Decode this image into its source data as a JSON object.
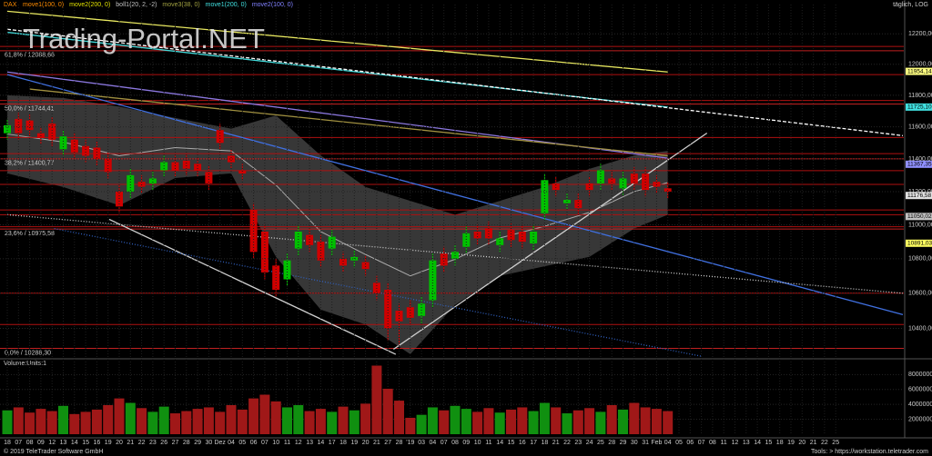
{
  "chart_data": {
    "type": "candlestick",
    "instrument": "DAX",
    "indicators": [
      "move1(100, 0)",
      "move2(200, 0)",
      "boll1(20, 2, -2)",
      "move3(38, 0)",
      "move1(200, 0)",
      "move2(100, 0)"
    ],
    "indicator_colors": [
      "#ff8c00",
      "#e0e000",
      "#c0c0c0",
      "#a0a040",
      "#40e0e0",
      "#8080ff"
    ],
    "period": "täglich, LOG",
    "watermark": "Trading-Portal.NET",
    "footer_left": "© 2019 TeleTrader Software GmbH",
    "footer_right": "Tools: > https://workstation.teletrader.com",
    "volume_title": "Volume:Units:1",
    "categories": [
      "18",
      "07",
      "08",
      "09",
      "12",
      "13",
      "14",
      "15",
      "16",
      "19",
      "20",
      "21",
      "22",
      "23",
      "26",
      "27",
      "28",
      "29",
      "30",
      "Dez",
      "04",
      "05",
      "06",
      "07",
      "10",
      "11",
      "12",
      "13",
      "14",
      "17",
      "18",
      "19",
      "20",
      "21",
      "27",
      "28",
      "'19",
      "03",
      "04",
      "07",
      "08",
      "09",
      "10",
      "11",
      "14",
      "15",
      "16",
      "17",
      "18",
      "21",
      "22",
      "23",
      "24",
      "25",
      "28",
      "29",
      "30",
      "31",
      "Feb",
      "04",
      "05",
      "06",
      "07",
      "08",
      "11",
      "12",
      "13",
      "14",
      "15",
      "18",
      "19",
      "20",
      "21",
      "22",
      "25"
    ],
    "open": [
      11560,
      11650,
      11640,
      11560,
      11620,
      11460,
      11520,
      11480,
      11470,
      11400,
      11200,
      11200,
      11260,
      11250,
      11330,
      11380,
      11390,
      11370,
      11320,
      11580,
      11420,
      11330,
      11090,
      10960,
      10760,
      10680,
      10860,
      10940,
      10900,
      10860,
      10800,
      10790,
      10780,
      10660,
      10620,
      10500,
      10520,
      10470,
      10560,
      10830,
      10800,
      10870,
      10960,
      10980,
      10880,
      10970,
      10960,
      10890,
      11070,
      11250,
      11130,
      11150,
      11250,
      11250,
      11280,
      11220,
      11310,
      11310,
      11260,
      11220,
      null,
      null,
      null,
      null,
      null,
      null,
      null,
      null,
      null,
      null,
      null,
      null,
      null,
      null,
      null
    ],
    "close": [
      11610,
      11560,
      11580,
      11530,
      11520,
      11540,
      11440,
      11420,
      11400,
      11320,
      11110,
      11300,
      11230,
      11280,
      11380,
      11330,
      11340,
      11330,
      11250,
      11500,
      11380,
      11310,
      10840,
      10720,
      10620,
      10790,
      10960,
      10880,
      10790,
      10930,
      10760,
      10810,
      10740,
      10600,
      10400,
      10440,
      10460,
      10540,
      10790,
      10760,
      10840,
      10950,
      10920,
      10920,
      10920,
      10910,
      10900,
      10960,
      11270,
      11210,
      11150,
      11100,
      11210,
      11330,
      11250,
      11280,
      11250,
      11210,
      11230,
      11200,
      null,
      null,
      null,
      null,
      null,
      null,
      null,
      null,
      null,
      null,
      null,
      null,
      null,
      null,
      null
    ],
    "high": [
      11650,
      11690,
      11680,
      11600,
      11660,
      11580,
      11560,
      11520,
      11510,
      11440,
      11240,
      11340,
      11300,
      11320,
      11420,
      11420,
      11430,
      11410,
      11360,
      11620,
      11460,
      11370,
      11130,
      11000,
      10800,
      10830,
      11000,
      10980,
      10940,
      10970,
      10840,
      10850,
      10820,
      10700,
      10660,
      10540,
      10560,
      10580,
      10830,
      10870,
      10880,
      10990,
      11000,
      11020,
      10960,
      11010,
      11000,
      11000,
      11310,
      11290,
      11190,
      11190,
      11290,
      11370,
      11320,
      11320,
      11350,
      11350,
      11300,
      11260,
      null,
      null,
      null,
      null,
      null,
      null,
      null,
      null,
      null,
      null,
      null,
      null,
      null,
      null,
      null
    ],
    "low": [
      11520,
      11520,
      11540,
      11490,
      11480,
      11420,
      11400,
      11380,
      11360,
      11280,
      11070,
      11160,
      11190,
      11210,
      11290,
      11290,
      11300,
      11290,
      11210,
      11460,
      11340,
      11270,
      10800,
      10680,
      10580,
      10640,
      10820,
      10840,
      10750,
      10820,
      10720,
      10750,
      10700,
      10560,
      10330,
      10310,
      10420,
      10430,
      10520,
      10720,
      10760,
      10830,
      10880,
      10880,
      10840,
      10870,
      10860,
      10850,
      11030,
      11170,
      11090,
      11060,
      11170,
      11210,
      11210,
      11180,
      11210,
      11170,
      11190,
      11160,
      null,
      null,
      null,
      null,
      null,
      null,
      null,
      null,
      null,
      null,
      null,
      null,
      null,
      null,
      null
    ],
    "volume": [
      3200000,
      3600000,
      2900000,
      3400000,
      3100000,
      3800000,
      2700000,
      3000000,
      3300000,
      3900000,
      4800000,
      4200000,
      3500000,
      3000000,
      3700000,
      2800000,
      3100000,
      3400000,
      3600000,
      3000000,
      3900000,
      3300000,
      4800000,
      5300000,
      4400000,
      3600000,
      3900000,
      3100000,
      3400000,
      3000000,
      3700000,
      3200000,
      4100000,
      9200000,
      6100000,
      4500000,
      2200000,
      2600000,
      3600000,
      3200000,
      3800000,
      3400000,
      3000000,
      3500000,
      2900000,
      3300000,
      3600000,
      3100000,
      4200000,
      3600000,
      2800000,
      3200000,
      3500000,
      3000000,
      3900000,
      3300000,
      4200000,
      3600000,
      3400000,
      3100000,
      null,
      null,
      null,
      null,
      null,
      null,
      null,
      null,
      null,
      null,
      null,
      null,
      null,
      null,
      null
    ],
    "up_color": "#00c000",
    "down_color": "#d00000",
    "log_scale": true,
    "grid": true,
    "ylim": [
      10240,
      12395
    ],
    "yticks": [
      {
        "value": 10400,
        "label": "10400,00"
      },
      {
        "value": 10600,
        "label": "10600,00"
      },
      {
        "value": 10800,
        "label": "10800,00"
      },
      {
        "value": 11000,
        "label": "11000,00"
      },
      {
        "value": 11200,
        "label": "11200,00"
      },
      {
        "value": 11400,
        "label": "11400,00"
      },
      {
        "value": 11600,
        "label": "11600,00"
      },
      {
        "value": 11800,
        "label": "11800,00"
      },
      {
        "value": 12000,
        "label": "12000,00"
      },
      {
        "value": 12200,
        "label": "12200,00"
      }
    ],
    "vlim": [
      0,
      9750000
    ],
    "vticks": [
      2000000,
      4000000,
      6000000,
      8000000
    ],
    "bollinger": {
      "x": [
        0,
        5,
        10,
        15,
        20,
        24,
        28,
        32,
        36,
        40,
        44,
        48,
        52,
        56,
        59
      ],
      "upper": [
        11800,
        11783,
        11728,
        11656,
        11589,
        11672,
        11422,
        11228,
        11144,
        11061,
        11144,
        11228,
        11339,
        11422,
        11450
      ],
      "middle": [
        11555,
        11505,
        11420,
        11470,
        11450,
        11240,
        10960,
        10825,
        10700,
        10797,
        10922,
        10992,
        11075,
        11200,
        11255
      ],
      "lower": [
        11311,
        11228,
        11117,
        11283,
        11311,
        10811,
        10506,
        10422,
        10256,
        10533,
        10700,
        10756,
        10811,
        10978,
        11061
      ]
    },
    "lines": [
      {
        "color": "#e8e860",
        "style": "solid",
        "x": [
          0,
          59
        ],
        "y": [
          12350,
          11950
        ]
      },
      {
        "color": "#40d8d8",
        "style": "solid",
        "x": [
          0,
          59
        ],
        "y": [
          12210,
          11725
        ]
      },
      {
        "color": "#ffffff",
        "style": "dashed",
        "x": [
          0,
          80
        ],
        "y": [
          12230,
          11545
        ]
      },
      {
        "color": "#8c78e0",
        "style": "solid",
        "x": [
          0,
          59
        ],
        "y": [
          11950,
          11405
        ]
      },
      {
        "color": "#a09040",
        "style": "solid",
        "x": [
          2,
          59
        ],
        "y": [
          11840,
          11420
        ]
      },
      {
        "color": "#4070e0",
        "style": "solid",
        "x": [
          0,
          80
        ],
        "y": [
          11933,
          10478
        ]
      },
      {
        "color": "#d0d0d0",
        "style": "solid",
        "x": [
          9.1,
          34.7
        ],
        "y": [
          11033,
          10255
        ]
      },
      {
        "color": "#d0d0d0",
        "style": "solid",
        "x": [
          34.5,
          62.5
        ],
        "y": [
          10283,
          11561
        ]
      },
      {
        "color": "#d0d0d0",
        "style": "dotted",
        "x": [
          0,
          80
        ],
        "y": [
          11061,
          10600
        ]
      },
      {
        "color": "#3060c0",
        "style": "dotted",
        "x": [
          4.2,
          62
        ],
        "y": [
          10978,
          10244
        ]
      }
    ],
    "hlines": [
      12117,
      11933,
      11767,
      11533,
      11433,
      11328,
      11244,
      11089,
      11061,
      10989,
      10600,
      10422
    ],
    "fib_levels": [
      {
        "value": 12088.66,
        "label": "61,8% / 12088,66"
      },
      {
        "value": 11744.41,
        "label": "50,0% / 11744,41"
      },
      {
        "value": 11400.77,
        "label": "38,2% / 11400,77"
      },
      {
        "value": 10975.58,
        "label": "23,6% / 10975,58"
      },
      {
        "value": 10288.3,
        "label": "0,0% / 10288,30"
      }
    ],
    "price_tags": [
      {
        "value": 11954.14,
        "label": "11954,14",
        "color": "#ffff80"
      },
      {
        "value": 11725.1,
        "label": "11725,10",
        "color": "#40e0e0"
      },
      {
        "value": 11367.35,
        "label": "11367,35",
        "color": "#9090ff"
      },
      {
        "value": 11176.58,
        "label": "11176,58",
        "color": "#e0e0e0"
      },
      {
        "value": 11050.02,
        "label": "11050,02",
        "color": "#c0c0c0"
      },
      {
        "value": 10891.03,
        "label": "10891,03",
        "color": "#ffff60"
      }
    ]
  }
}
